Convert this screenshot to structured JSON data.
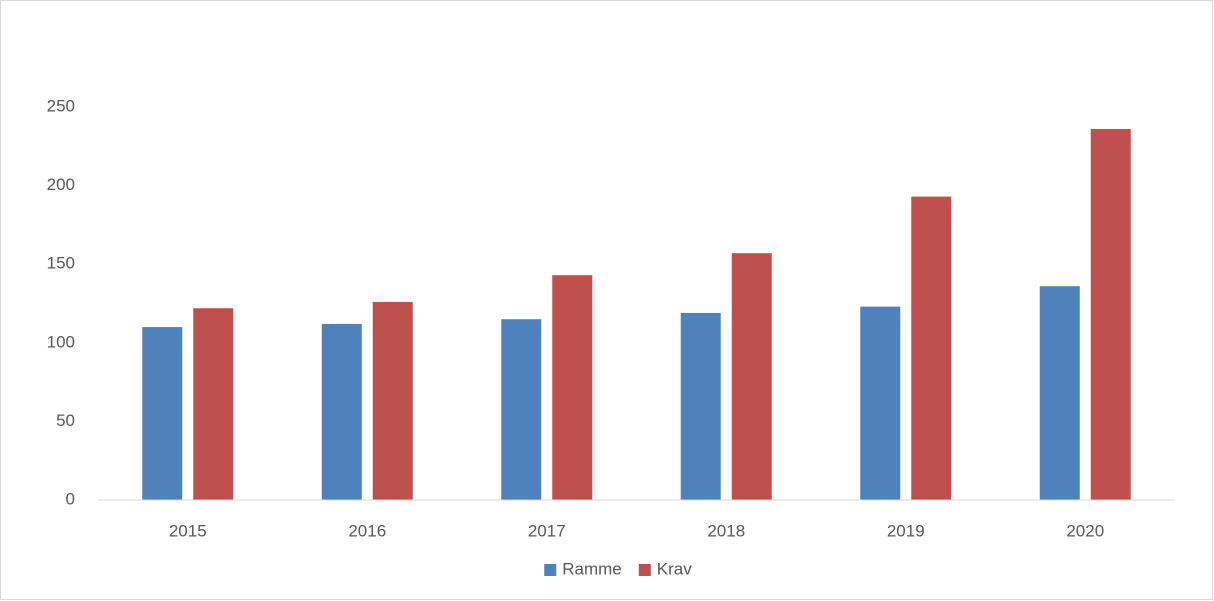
{
  "chart_data": {
    "type": "bar",
    "categories": [
      "2015",
      "2016",
      "2017",
      "2018",
      "2019",
      "2020"
    ],
    "series": [
      {
        "name": "Ramme",
        "color": "#4f81bd",
        "values": [
          110,
          112,
          115,
          119,
          123,
          136
        ]
      },
      {
        "name": "Krav",
        "color": "#c0504d",
        "values": [
          122,
          126,
          143,
          157,
          193,
          236
        ]
      }
    ],
    "ylim": [
      0,
      250
    ],
    "yticks": [
      0,
      50,
      100,
      150,
      200,
      250
    ],
    "grid": false,
    "legend": "bottom"
  }
}
